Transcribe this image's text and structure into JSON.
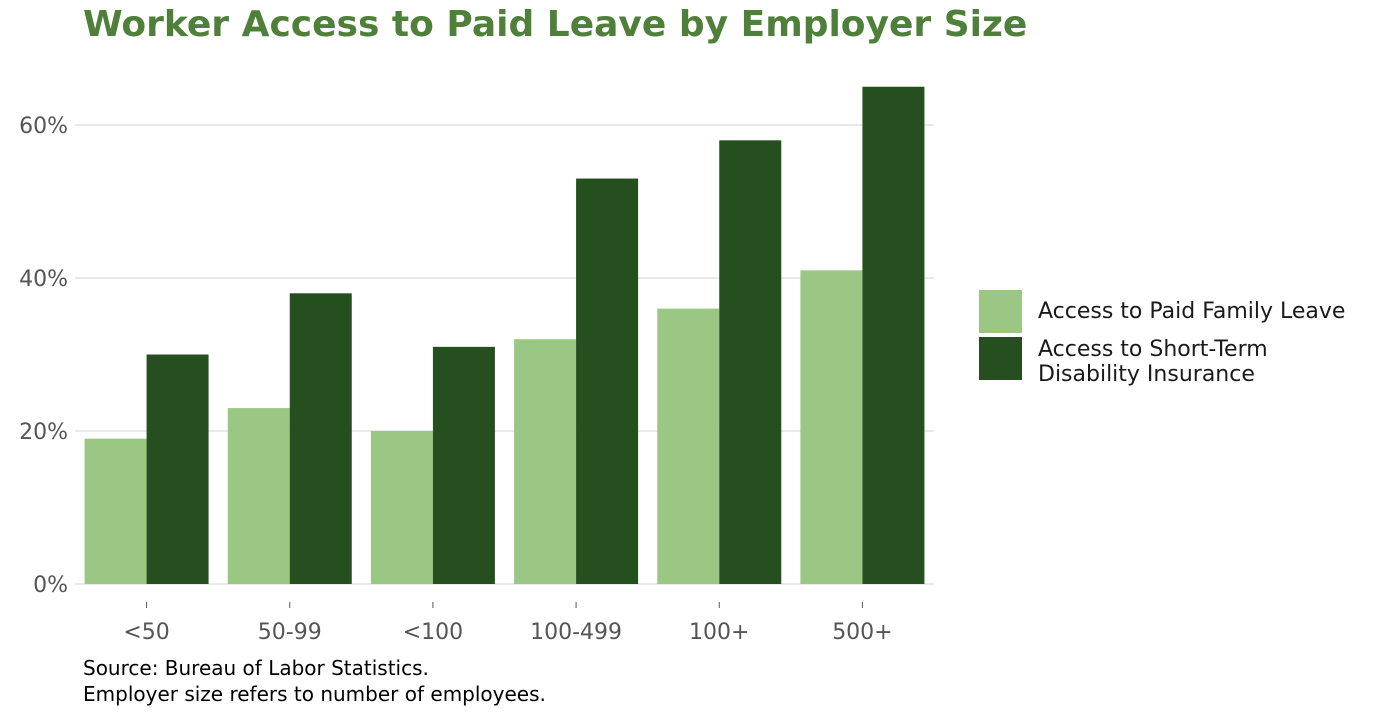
{
  "chart_data": {
    "type": "bar",
    "title": "Worker Access to Paid Leave by Employer Size",
    "categories": [
      "<50",
      "50-99",
      "<100",
      "100-499",
      "100+",
      "500+"
    ],
    "series": [
      {
        "name": "Access to Paid Family Leave",
        "color": "#9bc784",
        "values": [
          19,
          23,
          20,
          32,
          36,
          41
        ]
      },
      {
        "name": "Access to Short-Term Disability Insurance",
        "color": "#264f20",
        "values": [
          30,
          38,
          31,
          53,
          58,
          65
        ]
      }
    ],
    "y_ticks": [
      "0%",
      "20%",
      "40%",
      "60%"
    ],
    "y_tick_values": [
      0,
      20,
      40,
      60
    ],
    "ylim": [
      0,
      66
    ],
    "xlabel": "",
    "ylabel": "",
    "grid": true,
    "legend_position": "right",
    "legend_labels": [
      "Access to Paid Family Leave",
      "Access to Short-Term",
      "Disability Insurance"
    ]
  },
  "caption": {
    "line1": "Source: Bureau of Labor Statistics.",
    "line2": "Employer size refers to number of employees."
  }
}
